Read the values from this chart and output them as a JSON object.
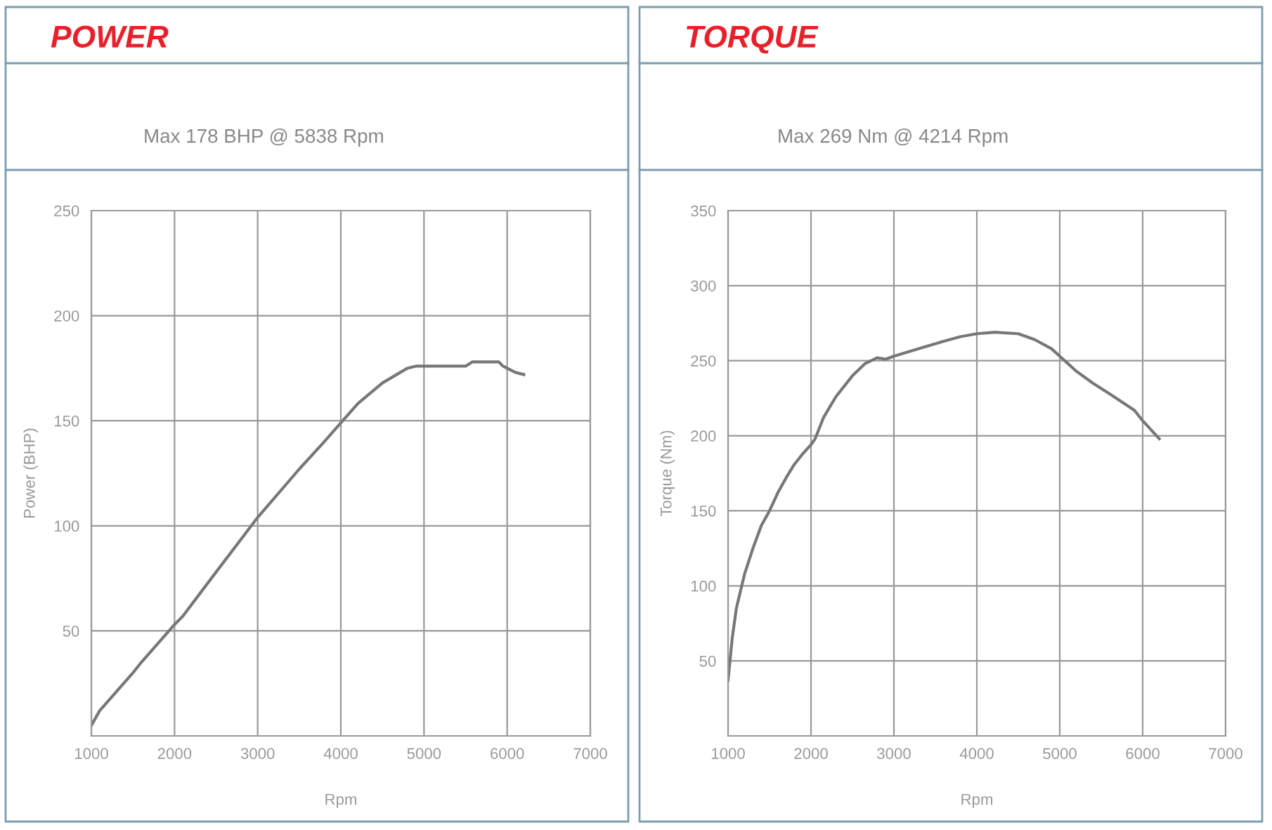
{
  "chart_data": [
    {
      "type": "line",
      "title": "POWER",
      "subtitle": "Max 178 BHP @ 5838 Rpm",
      "xlabel": "Rpm",
      "ylabel": "Power (BHP)",
      "xlim": [
        1000,
        7000
      ],
      "xticks": [
        1000,
        2000,
        3000,
        4000,
        5000,
        6000,
        7000
      ],
      "ylim": [
        0,
        250
      ],
      "yticks": [
        50,
        100,
        150,
        200,
        250
      ],
      "grid": true,
      "legend": false,
      "series": [
        {
          "color": "#777777",
          "x": [
            1000,
            1100,
            1500,
            1600,
            2000,
            2100,
            2500,
            3000,
            3500,
            3800,
            4000,
            4200,
            4500,
            4800,
            4900,
            5500,
            5580,
            5900,
            5950,
            6100,
            6200
          ],
          "values": [
            5,
            12,
            30,
            35,
            53,
            57,
            78,
            104,
            127,
            140,
            149,
            158,
            168,
            175,
            176,
            176,
            178,
            178,
            176,
            173,
            172
          ]
        }
      ]
    },
    {
      "type": "line",
      "title": "TORQUE",
      "subtitle": "Max 269 Nm @ 4214 Rpm",
      "xlabel": "Rpm",
      "ylabel": "Torque (Nm)",
      "xlim": [
        1000,
        7000
      ],
      "xticks": [
        1000,
        2000,
        3000,
        4000,
        5000,
        6000,
        7000
      ],
      "ylim": [
        0,
        350
      ],
      "yticks": [
        50,
        100,
        150,
        200,
        250,
        300,
        350
      ],
      "grid": true,
      "legend": false,
      "series": [
        {
          "color": "#777777",
          "x": [
            1000,
            1050,
            1100,
            1200,
            1300,
            1400,
            1500,
            1600,
            1700,
            1800,
            1900,
            2000,
            2050,
            2150,
            2300,
            2500,
            2650,
            2800,
            2900,
            3000,
            3300,
            3600,
            3800,
            4000,
            4214,
            4500,
            4700,
            4900,
            5000,
            5200,
            5400,
            5600,
            5900,
            6000,
            6200
          ],
          "values": [
            37,
            65,
            85,
            108,
            125,
            140,
            150,
            162,
            172,
            181,
            188,
            194,
            198,
            212,
            226,
            240,
            248,
            252,
            251,
            253,
            258,
            263,
            266,
            268,
            269,
            268,
            264,
            258,
            253,
            243,
            235,
            228,
            217,
            210,
            198
          ]
        }
      ]
    }
  ]
}
